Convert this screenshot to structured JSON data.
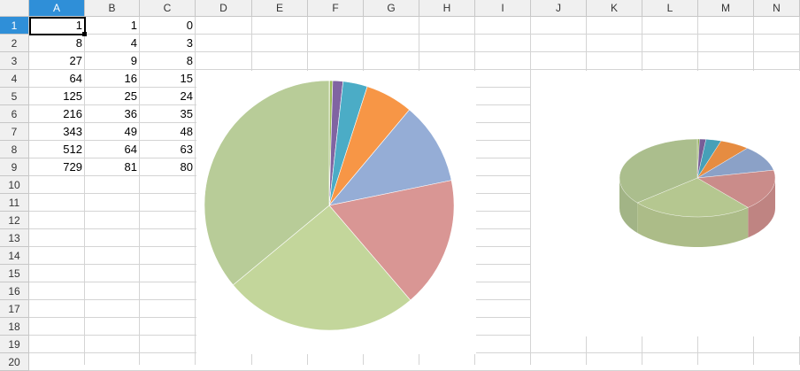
{
  "columns": [
    "A",
    "B",
    "C",
    "D",
    "E",
    "F",
    "G",
    "H",
    "I",
    "J",
    "K",
    "L",
    "M",
    "N"
  ],
  "rows": [
    "1",
    "2",
    "3",
    "4",
    "5",
    "6",
    "7",
    "8",
    "9",
    "10",
    "11",
    "12",
    "13",
    "14",
    "15",
    "16",
    "17",
    "18",
    "19",
    "20"
  ],
  "cells": {
    "A": [
      "1",
      "8",
      "27",
      "64",
      "125",
      "216",
      "343",
      "512",
      "729"
    ],
    "B": [
      "1",
      "4",
      "9",
      "16",
      "25",
      "36",
      "49",
      "64",
      "81"
    ],
    "C": [
      "0",
      "3",
      "8",
      "15",
      "24",
      "35",
      "48",
      "63",
      "80"
    ]
  },
  "selected_cell": "A1",
  "chart_data": [
    {
      "type": "pie",
      "variant": "2d",
      "values": [
        1,
        8,
        27,
        64,
        125,
        216,
        343,
        512,
        729
      ],
      "colors": [
        "#c0504d",
        "#9bbb59",
        "#8064a2",
        "#4bacc6",
        "#f79646",
        "#95add6",
        "#d99694",
        "#c3d69b",
        "#b8cc98"
      ]
    },
    {
      "type": "pie",
      "variant": "3d",
      "values": [
        1,
        8,
        27,
        64,
        125,
        216,
        343,
        512,
        729
      ],
      "colors": [
        "#c0504d",
        "#9bbb59",
        "#8064a2",
        "#4bacc6",
        "#f79646",
        "#95add6",
        "#d99694",
        "#c3d69b",
        "#b8cc98"
      ]
    }
  ]
}
